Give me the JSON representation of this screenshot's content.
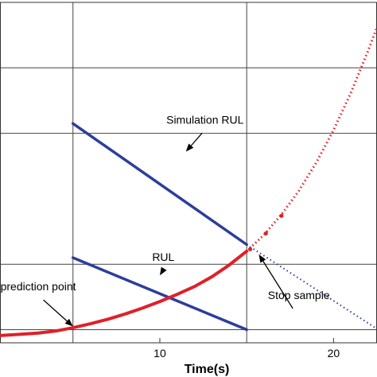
{
  "chart_data": {
    "type": "line",
    "xlabel": "Time(s)",
    "ylabel": "",
    "x_ticks": [
      10,
      20
    ],
    "xlim": [
      0.8,
      22.5
    ],
    "ylim": [
      -0.2,
      5.0
    ],
    "grid": true,
    "grid_x": [
      5,
      15
    ],
    "grid_y": [
      0,
      1.0,
      3.0,
      4.0
    ],
    "series": [
      {
        "name": "",
        "color": "#2b3e9b",
        "style": "solid",
        "points": [
          [
            5,
            3.15
          ],
          [
            15,
            1.3
          ]
        ]
      },
      {
        "name": "",
        "color": "#2b3e9b",
        "style": "solid",
        "points": [
          [
            5,
            1.1
          ],
          [
            15,
            0.0
          ]
        ]
      },
      {
        "name": "",
        "color": "#2b3e9b",
        "style": "dotted",
        "points": [
          [
            15,
            1.3
          ],
          [
            22.4,
            0.03
          ]
        ]
      },
      {
        "name": "",
        "color": "#e0202a",
        "style": "solid",
        "points": [
          [
            0.8,
            -0.09
          ],
          [
            2,
            -0.07
          ],
          [
            3,
            -0.05
          ],
          [
            4,
            -0.02
          ],
          [
            5,
            0.03
          ],
          [
            6,
            0.09
          ],
          [
            7,
            0.16
          ],
          [
            8,
            0.24
          ],
          [
            9,
            0.33
          ],
          [
            10,
            0.43
          ],
          [
            11,
            0.54
          ],
          [
            12,
            0.66
          ],
          [
            13,
            0.81
          ],
          [
            14,
            0.99
          ],
          [
            15,
            1.2
          ]
        ]
      },
      {
        "name": "",
        "color": "#e0202a",
        "style": "dotted",
        "points": [
          [
            15,
            1.2
          ],
          [
            16,
            1.45
          ],
          [
            17,
            1.76
          ],
          [
            18,
            2.12
          ],
          [
            19,
            2.55
          ],
          [
            20,
            3.05
          ],
          [
            21,
            3.62
          ],
          [
            22,
            4.27
          ],
          [
            22.5,
            4.62
          ]
        ]
      }
    ],
    "markers": [
      {
        "color": "#e0202a",
        "points": [
          [
            15.2,
            1.23
          ],
          [
            16.1,
            1.47
          ],
          [
            17.0,
            1.74
          ]
        ]
      }
    ],
    "annotations": [
      {
        "text": "Simulation RUL",
        "at": [
          11.5,
          2.72
        ],
        "text_at": [
          12.6,
          3.15
        ]
      },
      {
        "text": "RUL",
        "at": [
          10.0,
          0.83
        ],
        "text_at": [
          10.2,
          1.05
        ]
      },
      {
        "text": "prediction point",
        "at": [
          5.0,
          0.05
        ],
        "text_at": [
          3.0,
          0.6
        ]
      },
      {
        "text": "Stop sample",
        "at": [
          15.7,
          1.15
        ],
        "text_at": [
          18.0,
          0.47
        ]
      }
    ]
  }
}
